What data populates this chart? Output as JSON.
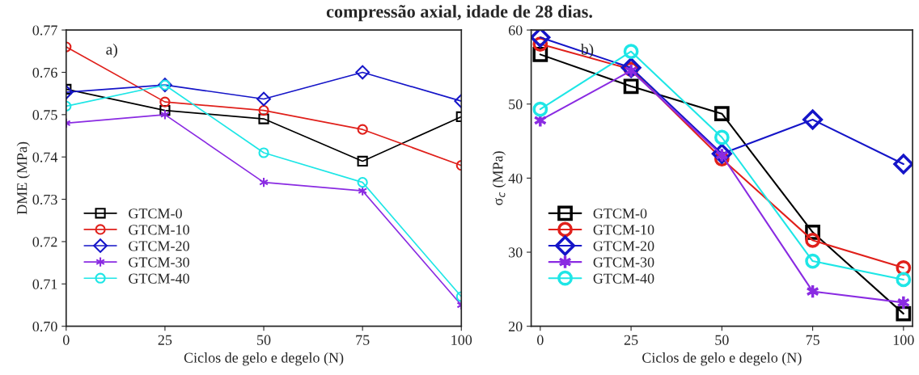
{
  "chart_data": [
    {
      "type": "line",
      "x": [
        0,
        25,
        50,
        75,
        100
      ],
      "xlabel": "Ciclos de gelo e degelo (N)",
      "ylabel": "DME (MPa)",
      "xlim": [
        0,
        100
      ],
      "xticks": [
        0,
        25,
        50,
        75,
        100
      ],
      "ylim": [
        0.7,
        0.77
      ],
      "yticks": [
        {
          "value": 0.7,
          "label": "0.70"
        },
        0.71,
        0.72,
        0.73,
        0.74,
        0.75,
        0.76,
        0.77
      ],
      "grid": false,
      "legend": "bottom left",
      "annotations": [
        "compressão axial, idade de 28 dias.",
        "a)"
      ],
      "series": [
        {
          "name": "GTCM-0",
          "color": "#000000",
          "marker": "square",
          "values": [
            0.756,
            0.751,
            0.749,
            0.739,
            0.7495
          ]
        },
        {
          "name": "GTCM-10",
          "color": "#e0201b",
          "marker": "circle",
          "values": [
            0.766,
            0.753,
            0.751,
            0.7465,
            0.738
          ]
        },
        {
          "name": "GTCM-20",
          "color": "#1515c8",
          "marker": "diamond",
          "values": [
            0.7553,
            0.757,
            0.7537,
            0.76,
            0.7532
          ]
        },
        {
          "name": "GTCM-30",
          "color": "#8a2be2",
          "marker": "cross",
          "values": [
            0.748,
            0.75,
            0.734,
            0.732,
            0.705
          ]
        },
        {
          "name": "GTCM-40",
          "color": "#1ee6e6",
          "marker": "circle",
          "values": [
            0.752,
            0.757,
            0.741,
            0.734,
            0.707
          ]
        }
      ]
    },
    {
      "type": "line",
      "x": [
        0,
        25,
        50,
        75,
        100
      ],
      "xlabel": "Ciclos de gelo e degelo (N)",
      "ylabel": "σ$_{c}$ (MPa)",
      "xlim": [
        -2.5,
        102.5
      ],
      "xticks": [
        0,
        25,
        50,
        75,
        100
      ],
      "ylim": [
        20,
        60
      ],
      "yticks": [
        20,
        30,
        40,
        50,
        60
      ],
      "grid": false,
      "legend": "bottom left",
      "annotations": [
        "b)"
      ],
      "series": [
        {
          "name": "GTCM-0",
          "color": "#000000",
          "marker": "square",
          "values": [
            56.7,
            52.4,
            48.7,
            32.7,
            21.7
          ]
        },
        {
          "name": "GTCM-10",
          "color": "#e0201b",
          "marker": "circle",
          "values": [
            58.1,
            54.7,
            42.6,
            31.6,
            27.9
          ]
        },
        {
          "name": "GTCM-20",
          "color": "#1515c8",
          "marker": "diamond",
          "values": [
            59.0,
            54.9,
            43.3,
            47.9,
            41.9
          ]
        },
        {
          "name": "GTCM-30",
          "color": "#8a2be2",
          "marker": "cross",
          "values": [
            47.8,
            54.5,
            43.1,
            24.7,
            23.2
          ]
        },
        {
          "name": "GTCM-40",
          "color": "#1ee6e6",
          "marker": "circle",
          "values": [
            49.3,
            57.1,
            45.5,
            28.8,
            26.3
          ]
        }
      ]
    }
  ]
}
